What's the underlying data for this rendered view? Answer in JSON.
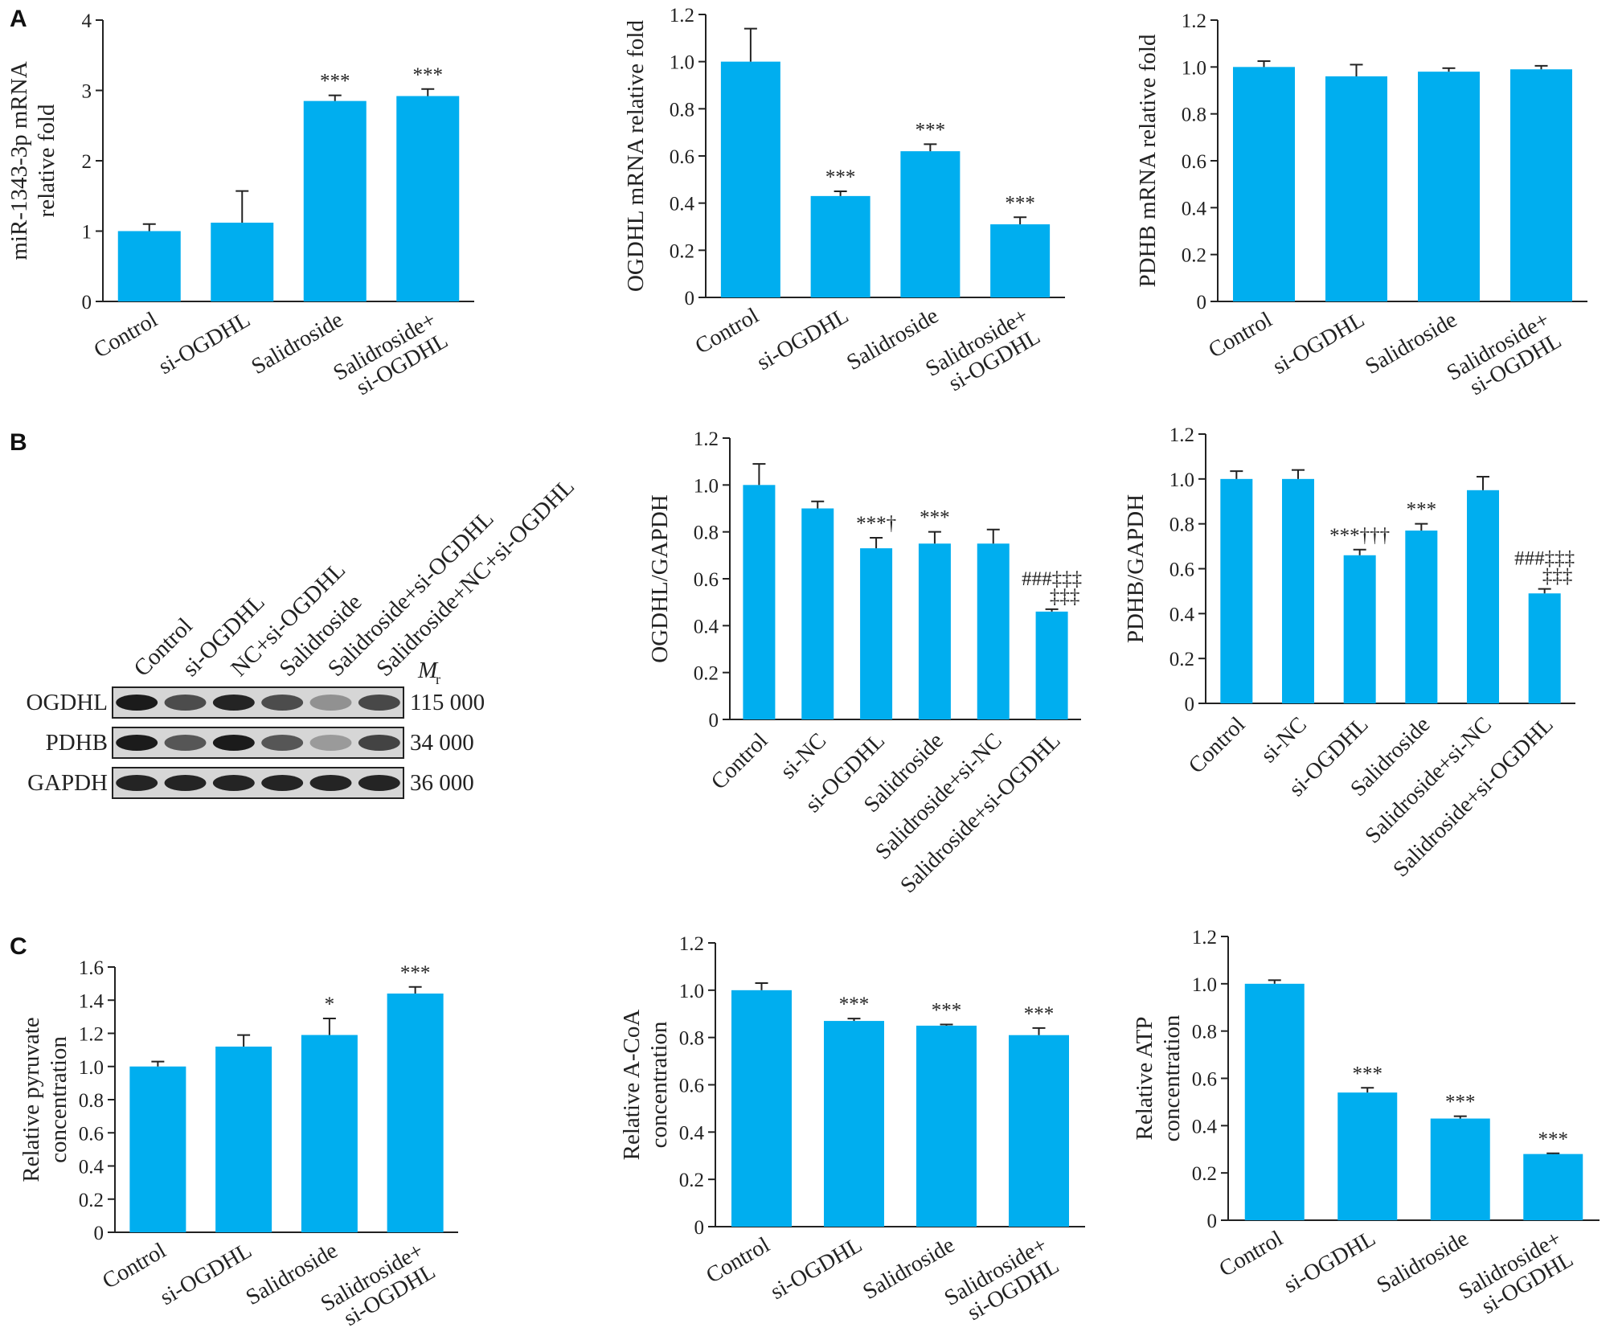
{
  "colors": {
    "bar": "#00aeef",
    "axis": "#222222"
  },
  "panel_labels": [
    "A",
    "B",
    "C"
  ],
  "western_blot": {
    "lanes": [
      "Control",
      "si-OGDHL",
      "NC+si-OGDHL",
      "Salidroside",
      "Salidroside+si-OGDHL",
      "Salidroside+NC+si-OGDHL"
    ],
    "mr_label": "M",
    "mr_subscript": "r",
    "rows": [
      {
        "name": "OGDHL",
        "mw": "115 000",
        "intensity": [
          0.95,
          0.7,
          0.9,
          0.7,
          0.35,
          0.72
        ]
      },
      {
        "name": "PDHB",
        "mw": "34 000",
        "intensity": [
          0.95,
          0.65,
          0.95,
          0.65,
          0.3,
          0.75
        ]
      },
      {
        "name": "GAPDH",
        "mw": "36 000",
        "intensity": [
          0.9,
          0.9,
          0.9,
          0.9,
          0.9,
          0.9
        ]
      }
    ]
  },
  "chart_data": [
    {
      "type": "bar",
      "panel": "A",
      "ylabel_lines": [
        "miR-1343-3p mRNA",
        "relative fold"
      ],
      "ylim": [
        0,
        4
      ],
      "yticks": [
        "0",
        "1",
        "2",
        "3",
        "4"
      ],
      "categories": [
        "Control",
        "si-OGDHL",
        "Salidroside",
        "Salidroside+|si-OGDHL"
      ],
      "values": [
        1.0,
        1.12,
        2.85,
        2.92
      ],
      "errors": [
        0.1,
        0.45,
        0.08,
        0.1
      ],
      "annotations": [
        "",
        "",
        "***",
        "***"
      ]
    },
    {
      "type": "bar",
      "panel": "A",
      "ylabel_lines": [
        "OGDHL mRNA relative fold"
      ],
      "ylim": [
        0,
        1.2
      ],
      "yticks": [
        "0",
        "0.2",
        "0.4",
        "0.6",
        "0.8",
        "1.0",
        "1.2"
      ],
      "categories": [
        "Control",
        "si-OGDHL",
        "Salidroside",
        "Salidroside+|si-OGDHL"
      ],
      "values": [
        1.0,
        0.43,
        0.62,
        0.31
      ],
      "errors": [
        0.14,
        0.02,
        0.03,
        0.03
      ],
      "annotations": [
        "",
        "***",
        "***",
        "***"
      ]
    },
    {
      "type": "bar",
      "panel": "A",
      "ylabel_lines": [
        "PDHB mRNA relative fold"
      ],
      "ylim": [
        0,
        1.2
      ],
      "yticks": [
        "0",
        "0.2",
        "0.4",
        "0.6",
        "0.8",
        "1.0",
        "1.2"
      ],
      "categories": [
        "Control",
        "si-OGDHL",
        "Salidroside",
        "Salidroside+|si-OGDHL"
      ],
      "values": [
        1.0,
        0.96,
        0.98,
        0.99
      ],
      "errors": [
        0.025,
        0.05,
        0.015,
        0.015
      ],
      "annotations": [
        "",
        "",
        "",
        ""
      ]
    },
    {
      "type": "bar",
      "panel": "B",
      "ylabel_lines": [
        "OGDHL/GAPDH"
      ],
      "ylim": [
        0,
        1.2
      ],
      "yticks": [
        "0",
        "0.2",
        "0.4",
        "0.6",
        "0.8",
        "1.0",
        "1.2"
      ],
      "categories": [
        "Control",
        "si-NC",
        "si-OGDHL",
        "Salidroside",
        "Salidroside+si-NC",
        "Salidroside+si-OGDHL"
      ],
      "values": [
        1.0,
        0.9,
        0.73,
        0.75,
        0.75,
        0.46
      ],
      "errors": [
        0.09,
        0.03,
        0.045,
        0.05,
        0.06,
        0.01
      ],
      "annotations": [
        "",
        "",
        "***†",
        "***",
        "",
        "###‡‡‡|‡‡‡"
      ]
    },
    {
      "type": "bar",
      "panel": "B",
      "ylabel_lines": [
        "PDHB/GAPDH"
      ],
      "ylim": [
        0,
        1.2
      ],
      "yticks": [
        "0",
        "0.2",
        "0.4",
        "0.6",
        "0.8",
        "1.0",
        "1.2"
      ],
      "categories": [
        "Control",
        "si-NC",
        "si-OGDHL",
        "Salidroside",
        "Salidroside+si-NC",
        "Salidroside+si-OGDHL"
      ],
      "values": [
        1.0,
        1.0,
        0.66,
        0.77,
        0.95,
        0.49
      ],
      "errors": [
        0.035,
        0.04,
        0.025,
        0.03,
        0.06,
        0.02
      ],
      "annotations": [
        "",
        "",
        "***†††",
        "***",
        "",
        "###‡‡‡|‡‡‡"
      ]
    },
    {
      "type": "bar",
      "panel": "C",
      "ylabel_lines": [
        "Relative pyruvate",
        "concentration"
      ],
      "ylim": [
        0,
        1.6
      ],
      "yticks": [
        "0",
        "0.2",
        "0.4",
        "0.6",
        "0.8",
        "1.0",
        "1.2",
        "1.4",
        "1.6"
      ],
      "categories": [
        "Control",
        "si-OGDHL",
        "Salidroside",
        "Salidroside+|si-OGDHL"
      ],
      "values": [
        1.0,
        1.12,
        1.19,
        1.44
      ],
      "errors": [
        0.03,
        0.07,
        0.1,
        0.04
      ],
      "annotations": [
        "",
        "",
        "*",
        "***"
      ]
    },
    {
      "type": "bar",
      "panel": "C",
      "ylabel_lines": [
        "Relative A-CoA",
        "concentration"
      ],
      "ylim": [
        0,
        1.2
      ],
      "yticks": [
        "0",
        "0.2",
        "0.4",
        "0.6",
        "0.8",
        "1.0",
        "1.2"
      ],
      "categories": [
        "Control",
        "si-OGDHL",
        "Salidroside",
        "Salidroside+|si-OGDHL"
      ],
      "values": [
        1.0,
        0.87,
        0.85,
        0.81
      ],
      "errors": [
        0.03,
        0.01,
        0.005,
        0.03
      ],
      "annotations": [
        "",
        "***",
        "***",
        "***"
      ]
    },
    {
      "type": "bar",
      "panel": "C",
      "ylabel_lines": [
        "Relative ATP",
        "concentration"
      ],
      "ylim": [
        0,
        1.2
      ],
      "yticks": [
        "0",
        "0.2",
        "0.4",
        "0.6",
        "0.8",
        "1.0",
        "1.2"
      ],
      "categories": [
        "Control",
        "si-OGDHL",
        "Salidroside",
        "Salidroside+|si-OGDHL"
      ],
      "values": [
        1.0,
        0.54,
        0.43,
        0.28
      ],
      "errors": [
        0.015,
        0.02,
        0.01,
        0.003
      ],
      "annotations": [
        "",
        "***",
        "***",
        "***"
      ]
    }
  ]
}
